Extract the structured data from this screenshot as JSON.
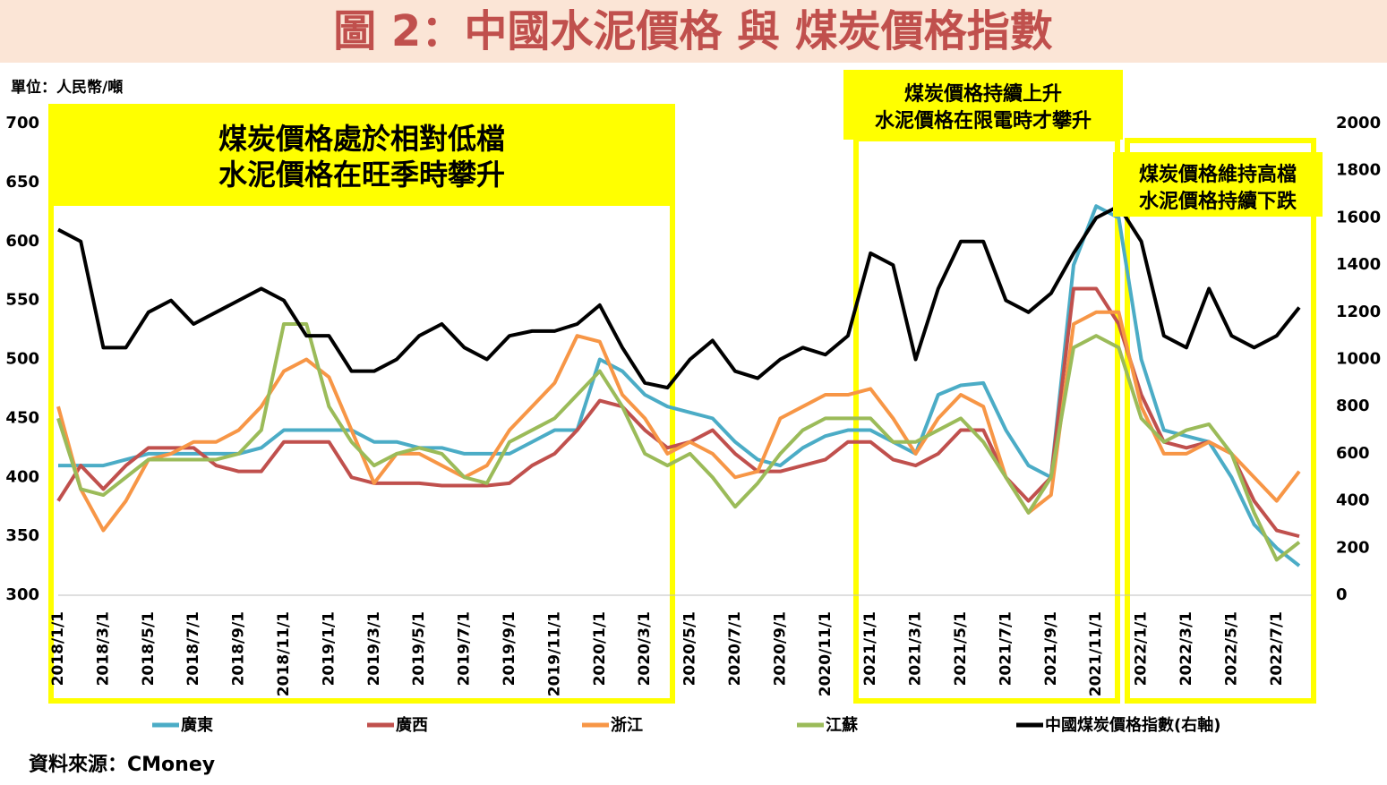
{
  "chart_data": {
    "type": "line",
    "title": "圖 2：中國水泥價格 與 煤炭價格指數",
    "unit_label": "單位：人民幣/噸",
    "source": "資料來源：CMoney",
    "annotations": [
      {
        "lines": [
          "煤炭價格處於相對低檔",
          "水泥價格在旺季時攀升"
        ]
      },
      {
        "lines": [
          "煤炭價格持續上升",
          "水泥價格在限電時才攀升"
        ]
      },
      {
        "lines": [
          "煤炭價格維持高檔",
          "水泥價格持續下跌"
        ]
      }
    ],
    "categories": [
      "2018/1/1",
      null,
      "2018/3/1",
      null,
      "2018/5/1",
      null,
      "2018/7/1",
      null,
      "2018/9/1",
      null,
      "2018/11/1",
      null,
      "2019/1/1",
      null,
      "2019/3/1",
      null,
      "2019/5/1",
      null,
      "2019/7/1",
      null,
      "2019/9/1",
      null,
      "2019/11/1",
      null,
      "2020/1/1",
      null,
      "2020/3/1",
      null,
      "2020/5/1",
      null,
      "2020/7/1",
      null,
      "2020/9/1",
      null,
      "2020/11/1",
      null,
      "2021/1/1",
      null,
      "2021/3/1",
      null,
      "2021/5/1",
      null,
      "2021/7/1",
      null,
      "2021/9/1",
      null,
      "2021/11/1",
      null,
      "2022/1/1",
      null,
      "2022/3/1",
      null,
      "2022/5/1",
      null,
      "2022/7/1",
      null
    ],
    "ylim": [
      300,
      700
    ],
    "yticks": [
      300,
      350,
      400,
      450,
      500,
      550,
      600,
      650,
      700
    ],
    "y2lim": [
      0,
      2000
    ],
    "y2ticks": [
      0,
      200,
      400,
      600,
      800,
      1000,
      1200,
      1400,
      1600,
      1800,
      2000
    ],
    "series": [
      {
        "name": "廣東",
        "color": "#4bacc6",
        "values": [
          410,
          410,
          410,
          415,
          420,
          420,
          420,
          420,
          420,
          425,
          440,
          440,
          440,
          440,
          430,
          430,
          425,
          425,
          420,
          420,
          420,
          430,
          440,
          440,
          500,
          490,
          470,
          460,
          455,
          450,
          430,
          415,
          410,
          425,
          435,
          440,
          440,
          430,
          420,
          470,
          478,
          480,
          440,
          410,
          400,
          580,
          630,
          620,
          500,
          440,
          435,
          430,
          400,
          360,
          340,
          325
        ]
      },
      {
        "name": "廣西",
        "color": "#c0504d",
        "values": [
          380,
          410,
          390,
          410,
          425,
          425,
          425,
          410,
          405,
          405,
          430,
          430,
          430,
          400,
          395,
          395,
          395,
          393,
          393,
          393,
          395,
          410,
          420,
          440,
          465,
          460,
          440,
          425,
          430,
          440,
          420,
          405,
          405,
          410,
          415,
          430,
          430,
          415,
          410,
          420,
          440,
          440,
          400,
          380,
          400,
          560,
          560,
          530,
          470,
          430,
          425,
          430,
          420,
          380,
          355,
          350
        ]
      },
      {
        "name": "浙江",
        "color": "#f79646",
        "values": [
          460,
          390,
          355,
          380,
          415,
          420,
          430,
          430,
          440,
          460,
          490,
          500,
          485,
          440,
          395,
          420,
          420,
          410,
          400,
          410,
          440,
          460,
          480,
          520,
          515,
          470,
          450,
          420,
          430,
          420,
          400,
          405,
          450,
          460,
          470,
          470,
          475,
          450,
          420,
          450,
          470,
          460,
          400,
          370,
          385,
          530,
          540,
          540,
          460,
          420,
          420,
          430,
          420,
          400,
          380,
          405
        ]
      },
      {
        "name": "江蘇",
        "color": "#9bbb59",
        "values": [
          450,
          390,
          385,
          400,
          415,
          415,
          415,
          415,
          420,
          440,
          530,
          530,
          460,
          430,
          410,
          420,
          425,
          420,
          400,
          395,
          430,
          440,
          450,
          470,
          490,
          460,
          420,
          410,
          420,
          400,
          375,
          395,
          420,
          440,
          450,
          450,
          450,
          430,
          430,
          440,
          450,
          430,
          400,
          370,
          400,
          510,
          520,
          510,
          450,
          430,
          440,
          445,
          420,
          370,
          330,
          345
        ]
      },
      {
        "name": "中國煤炭價格指數(右軸)",
        "color": "#000000",
        "axis": "y2",
        "values": [
          1550,
          1500,
          1050,
          1050,
          1200,
          1250,
          1150,
          1200,
          1250,
          1300,
          1250,
          1100,
          1100,
          950,
          950,
          1000,
          1100,
          1150,
          1050,
          1000,
          1100,
          1120,
          1120,
          1150,
          1230,
          1050,
          900,
          880,
          1000,
          1080,
          950,
          920,
          1000,
          1050,
          1020,
          1100,
          1450,
          1400,
          1000,
          1300,
          1500,
          1500,
          1250,
          1200,
          1280,
          1450,
          1600,
          1650,
          1500,
          1100,
          1050,
          1300,
          1100,
          1050,
          1100,
          1220
        ]
      }
    ]
  }
}
